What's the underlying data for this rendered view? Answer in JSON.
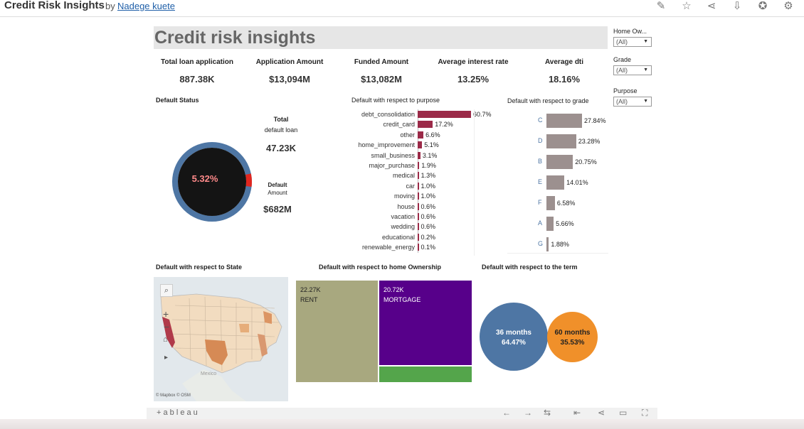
{
  "app": {
    "title": "Credit Risk Insights",
    "by": "by",
    "author": "Nadege kuete"
  },
  "dashboard_title": "Credit risk insights",
  "kpis": [
    {
      "label": "Total loan application",
      "value": "887.38K"
    },
    {
      "label": "Application Amount",
      "value": "$13,094M"
    },
    {
      "label": "Funded Amount",
      "value": "$13,082M"
    },
    {
      "label": "Average interest rate",
      "value": "13.25%"
    },
    {
      "label": "Average dti",
      "value": "18.16%"
    }
  ],
  "default_status": {
    "title": "Default Status",
    "pct": "5.32%",
    "pct_value": 5.32,
    "total_label_1": "Total",
    "total_label_2": "default loan",
    "total_value": "47.23K",
    "amount_label_1": "Default",
    "amount_label_2": "Amount",
    "amount_value": "$682M"
  },
  "sections": {
    "purpose": "Default with respect to purpose",
    "grade": "Default with respect to grade",
    "state": "Default with respect to State",
    "ownership": "Default with respect to home Ownership",
    "term": "Default with respect to the term"
  },
  "filters": [
    {
      "label": "Home Ow...",
      "value": "(All)"
    },
    {
      "label": "Grade",
      "value": "(All)"
    },
    {
      "label": "Purpose",
      "value": "(All)"
    }
  ],
  "map": {
    "attribution": "© Mapbox  © OSM",
    "country_label": "Mexico"
  },
  "ownership": [
    {
      "value": "22.27K",
      "label": "RENT"
    },
    {
      "value": "20.72K",
      "label": "MORTGAGE"
    }
  ],
  "term": [
    {
      "label": "36 months",
      "pct": "64.47%"
    },
    {
      "label": "60 months",
      "pct": "35.53%"
    }
  ],
  "footer": {
    "brand": "+ a b l e a u"
  },
  "colors": {
    "maroon": "#9b2a48",
    "grade_bar": "#9c908f",
    "ring": "#4e76a4",
    "rent": "#a8a87f",
    "mortgage": "#57008a",
    "other_own": "#54a54b",
    "term36": "#4e76a4",
    "term60": "#f0902a"
  },
  "chart_data": [
    {
      "type": "bar",
      "title": "Default with respect to purpose",
      "categories": [
        "debt_consolidation",
        "credit_card",
        "other",
        "home_improvement",
        "small_business",
        "major_purchase",
        "medical",
        "car",
        "moving",
        "house",
        "vacation",
        "wedding",
        "educational",
        "renewable_energy"
      ],
      "values": [
        60.7,
        17.2,
        6.6,
        5.1,
        3.1,
        1.9,
        1.3,
        1.0,
        1.0,
        0.6,
        0.6,
        0.6,
        0.2,
        0.1
      ],
      "labels": [
        "60.7%",
        "17.2%",
        "6.6%",
        "5.1%",
        "3.1%",
        "1.9%",
        "1.3%",
        "1.0%",
        "1.0%",
        "0.6%",
        "0.6%",
        "0.6%",
        "0.2%",
        "0.1%"
      ]
    },
    {
      "type": "bar",
      "title": "Default with respect to grade",
      "categories": [
        "C",
        "D",
        "B",
        "E",
        "F",
        "A",
        "G"
      ],
      "values": [
        27.84,
        23.28,
        20.75,
        14.01,
        6.58,
        5.66,
        1.88
      ],
      "labels": [
        "27.84%",
        "23.28%",
        "20.75%",
        "14.01%",
        "6.58%",
        "5.66%",
        "1.88%"
      ]
    },
    {
      "type": "pie",
      "title": "Default with respect to the term",
      "categories": [
        "36 months",
        "60 months"
      ],
      "values": [
        64.47,
        35.53
      ]
    }
  ]
}
